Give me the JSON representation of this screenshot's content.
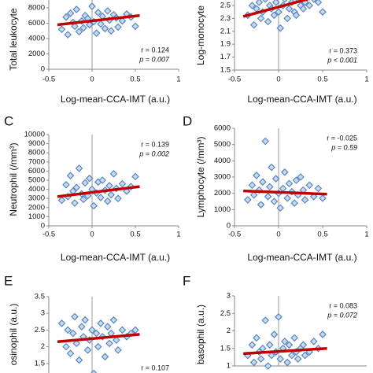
{
  "chart_data": [
    {
      "type": "scatter",
      "y_label": "Total leukocyte",
      "x_label": "Log-mean-CCA-IMT (a.u.)",
      "stat_r": "r = 0.124",
      "stat_p": "p = 0.007",
      "color": "#4f81bd",
      "fit_color": "#c00000",
      "xlim": [
        -0.5,
        1
      ],
      "xticks": [
        -0.5,
        0,
        0.5,
        1
      ],
      "ylim": [
        0,
        10000
      ],
      "yticks": [
        0,
        2000,
        4000,
        6000,
        8000
      ],
      "x": [
        -0.35,
        -0.3,
        -0.28,
        -0.25,
        -0.22,
        -0.2,
        -0.18,
        -0.15,
        -0.12,
        -0.1,
        -0.08,
        -0.05,
        -0.03,
        0,
        0.02,
        0.05,
        0.07,
        0.1,
        0.12,
        0.15,
        0.18,
        0.2,
        0.22,
        0.25,
        0.28,
        0.3,
        0.35,
        0.4,
        0.45,
        0.5
      ],
      "values": [
        5200,
        6800,
        4500,
        7300,
        6100,
        5600,
        7800,
        4900,
        6300,
        5400,
        7000,
        6600,
        5800,
        8200,
        6200,
        4700,
        7400,
        5900,
        6900,
        5300,
        7600,
        6400,
        5000,
        7100,
        6700,
        5500,
        6300,
        7200,
        6800,
        5600
      ],
      "fit": {
        "x": [
          -0.4,
          0.55
        ],
        "y": [
          5800,
          7000
        ]
      }
    },
    {
      "type": "scatter",
      "y_label": "Log-monocyte",
      "x_label": "Log-mean-CCA-IMT (a.u.)",
      "stat_r": "r = 0.373",
      "stat_p": "p < 0.001",
      "color": "#4f81bd",
      "fit_color": "#c00000",
      "xlim": [
        -0.5,
        1
      ],
      "xticks": [
        -0.5,
        0,
        0.5,
        1
      ],
      "ylim": [
        1.5,
        2.7
      ],
      "yticks": [
        1.5,
        1.7,
        1.9,
        2.1,
        2.3,
        2.5
      ],
      "x": [
        -0.35,
        -0.3,
        -0.28,
        -0.25,
        -0.22,
        -0.2,
        -0.18,
        -0.15,
        -0.12,
        -0.1,
        -0.08,
        -0.05,
        -0.03,
        0,
        0.02,
        0.05,
        0.07,
        0.1,
        0.12,
        0.15,
        0.18,
        0.2,
        0.22,
        0.25,
        0.28,
        0.3,
        0.35,
        0.4,
        0.45,
        0.5
      ],
      "values": [
        2.35,
        2.5,
        2.2,
        2.45,
        2.55,
        2.3,
        2.4,
        2.6,
        2.25,
        2.5,
        2.45,
        2.35,
        2.55,
        2.4,
        2.15,
        2.5,
        2.6,
        2.3,
        2.45,
        2.55,
        2.4,
        2.35,
        2.6,
        2.5,
        2.45,
        2.55,
        2.5,
        2.6,
        2.55,
        2.4
      ],
      "fit": {
        "x": [
          -0.4,
          0.55
        ],
        "y": [
          2.33,
          2.68
        ]
      }
    },
    {
      "type": "scatter",
      "label": "C",
      "y_label": "Neutrophil (/mm³)",
      "x_label": "Log-mean-CCA-IMT (a.u.)",
      "stat_r": "r = 0.139",
      "stat_p": "p = 0.002",
      "color": "#4f81bd",
      "fit_color": "#c00000",
      "xlim": [
        -0.5,
        1
      ],
      "xticks": [
        -0.5,
        0,
        0.5,
        1
      ],
      "ylim": [
        0,
        10000
      ],
      "yticks": [
        0,
        1000,
        2000,
        3000,
        4000,
        5000,
        6000,
        7000,
        8000,
        9000,
        10000
      ],
      "x": [
        -0.35,
        -0.3,
        -0.28,
        -0.25,
        -0.22,
        -0.2,
        -0.18,
        -0.15,
        -0.12,
        -0.1,
        -0.08,
        -0.05,
        -0.03,
        0,
        0.02,
        0.05,
        0.07,
        0.1,
        0.12,
        0.15,
        0.18,
        0.2,
        0.22,
        0.25,
        0.28,
        0.3,
        0.35,
        0.4,
        0.45,
        0.5
      ],
      "values": [
        2800,
        4500,
        3200,
        5500,
        3800,
        2500,
        4200,
        6300,
        3500,
        2900,
        4700,
        3300,
        5200,
        4000,
        2200,
        3600,
        4800,
        3100,
        5000,
        3900,
        2700,
        4400,
        3400,
        5700,
        4100,
        3000,
        4600,
        3800,
        4300,
        5400
      ],
      "fit": {
        "x": [
          -0.4,
          0.55
        ],
        "y": [
          3200,
          4300
        ]
      }
    },
    {
      "type": "scatter",
      "label": "D",
      "y_label": "Lymphocyte (/mm³)",
      "x_label": "Log-mean-CCA-IMT (a.u.)",
      "stat_r": "r = -0.025",
      "stat_p": "p = 0.59",
      "color": "#4f81bd",
      "fit_color": "#c00000",
      "xlim": [
        -0.5,
        1
      ],
      "xticks": [
        -0.5,
        0,
        0.5,
        1
      ],
      "ylim": [
        0,
        6000
      ],
      "yticks": [
        0,
        1000,
        2000,
        3000,
        4000,
        5000,
        6000
      ],
      "x": [
        -0.35,
        -0.3,
        -0.28,
        -0.25,
        -0.22,
        -0.2,
        -0.18,
        -0.15,
        -0.12,
        -0.1,
        -0.08,
        -0.05,
        -0.03,
        0,
        0.02,
        0.05,
        0.07,
        0.1,
        0.12,
        0.15,
        0.18,
        0.2,
        0.22,
        0.25,
        0.28,
        0.3,
        0.35,
        0.4,
        0.45,
        0.5
      ],
      "values": [
        1600,
        2500,
        1900,
        3100,
        2200,
        1300,
        2700,
        5200,
        1800,
        2400,
        3600,
        1500,
        2900,
        2000,
        1100,
        2300,
        3300,
        1700,
        2600,
        2100,
        1400,
        2800,
        1900,
        3000,
        2200,
        1600,
        2500,
        1800,
        2300,
        1700
      ],
      "fit": {
        "x": [
          -0.4,
          0.55
        ],
        "y": [
          2150,
          1950
        ]
      }
    },
    {
      "type": "scatter",
      "label": "E",
      "y_label": "osinophil (a.u.)",
      "stat_r": "r = 0.107",
      "color": "#4f81bd",
      "fit_color": "#c00000",
      "xlim": [
        -0.5,
        1
      ],
      "ylim": [
        1,
        3.5
      ],
      "yticks": [
        1.5,
        2,
        2.5,
        3,
        3.5
      ],
      "x": [
        -0.35,
        -0.3,
        -0.28,
        -0.25,
        -0.22,
        -0.2,
        -0.18,
        -0.15,
        -0.12,
        -0.1,
        -0.08,
        -0.05,
        -0.03,
        0,
        0.02,
        0.05,
        0.07,
        0.1,
        0.12,
        0.15,
        0.18,
        0.2,
        0.22,
        0.25,
        0.28,
        0.3,
        0.35,
        0.4,
        0.45,
        0.5
      ],
      "values": [
        2.7,
        2.0,
        2.5,
        1.8,
        2.4,
        2.9,
        2.1,
        1.6,
        2.6,
        2.3,
        2.8,
        1.9,
        2.2,
        2.5,
        1.2,
        2.4,
        2.0,
        2.7,
        2.3,
        1.7,
        2.6,
        2.1,
        2.4,
        2.8,
        2.2,
        1.9,
        2.5,
        2.3,
        2.4,
        2.5
      ],
      "fit": {
        "x": [
          -0.4,
          0.55
        ],
        "y": [
          2.15,
          2.37
        ]
      }
    },
    {
      "type": "scatter",
      "label": "F",
      "y_label": "basophil (a.u.)",
      "stat_r": "r = 0.083",
      "stat_p": "p = 0.072",
      "color": "#4f81bd",
      "fit_color": "#c00000",
      "xlim": [
        -0.5,
        1
      ],
      "ylim": [
        1,
        3
      ],
      "yticks": [
        1,
        1.5,
        2,
        2.5,
        3
      ],
      "x": [
        -0.35,
        -0.3,
        -0.28,
        -0.25,
        -0.22,
        -0.2,
        -0.18,
        -0.15,
        -0.12,
        -0.1,
        -0.08,
        -0.05,
        -0.03,
        0,
        0.02,
        0.05,
        0.07,
        0.1,
        0.12,
        0.15,
        0.18,
        0.2,
        0.22,
        0.25,
        0.28,
        0.3,
        0.35,
        0.4,
        0.45,
        0.5
      ],
      "values": [
        1.3,
        1.6,
        1.1,
        1.8,
        1.4,
        1.2,
        1.5,
        2.3,
        1.0,
        1.6,
        1.3,
        1.9,
        1.4,
        2.4,
        1.2,
        1.5,
        1.7,
        1.1,
        1.6,
        1.3,
        1.8,
        1.4,
        1.2,
        1.5,
        1.6,
        1.3,
        1.4,
        1.7,
        1.5,
        1.9
      ],
      "fit": {
        "x": [
          -0.4,
          0.55
        ],
        "y": [
          1.35,
          1.5
        ]
      }
    }
  ]
}
